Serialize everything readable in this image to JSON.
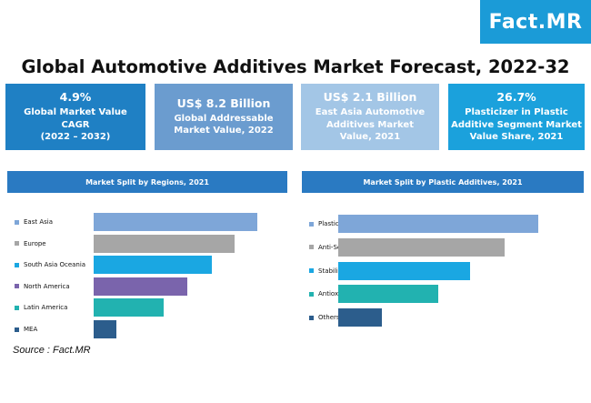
{
  "logo": {
    "text": "Fact.MR"
  },
  "title": "Global Automotive Additives Market Forecast, 2022-32",
  "kpis": [
    {
      "value": "4.9%",
      "lines": [
        "Global Market Value",
        "CAGR",
        "(2022 – 2032)"
      ],
      "color": "#1f80c4"
    },
    {
      "value": "US$ 8.2 Billion",
      "lines": [
        "Global Addressable",
        "Market Value, 2022"
      ],
      "color": "#6b9ccf"
    },
    {
      "value": "US$ 2.1 Billion",
      "lines": [
        "East Asia Automotive",
        "Additives Market",
        "Value, 2021"
      ],
      "color": "#a3c6e6"
    },
    {
      "value": "26.7%",
      "lines": [
        "Plasticizer in Plastic",
        "Additive Segment Market",
        "Value Share, 2021"
      ],
      "color": "#1ba1dc"
    }
  ],
  "chart_data": [
    {
      "type": "bar",
      "orientation": "horizontal",
      "title": "Market Split by Regions, 2021",
      "categories": [
        "East Asia",
        "Europe",
        "South Asia Oceania",
        "North America",
        "Latin America",
        "MEA"
      ],
      "values": [
        100,
        86,
        72,
        57,
        43,
        14
      ],
      "colors": [
        "#7ea6d8",
        "#a6a6a6",
        "#1aa7e2",
        "#7a64ac",
        "#22b2b0",
        "#2c5d8c"
      ],
      "legend_position": "left",
      "grid": false
    },
    {
      "type": "bar",
      "orientation": "horizontal",
      "title": "Market Split by Plastic Additives, 2021",
      "categories": [
        "Plasticizers",
        "Anti-Scratch",
        "Stabilizers",
        "Antioxidants",
        "Others"
      ],
      "values": [
        100,
        83,
        66,
        50,
        22
      ],
      "colors": [
        "#7ea6d8",
        "#a6a6a6",
        "#1aa7e2",
        "#22b2b0",
        "#2c5d8c"
      ],
      "legend_position": "left",
      "grid": false
    }
  ],
  "source": "Source : Fact.MR"
}
